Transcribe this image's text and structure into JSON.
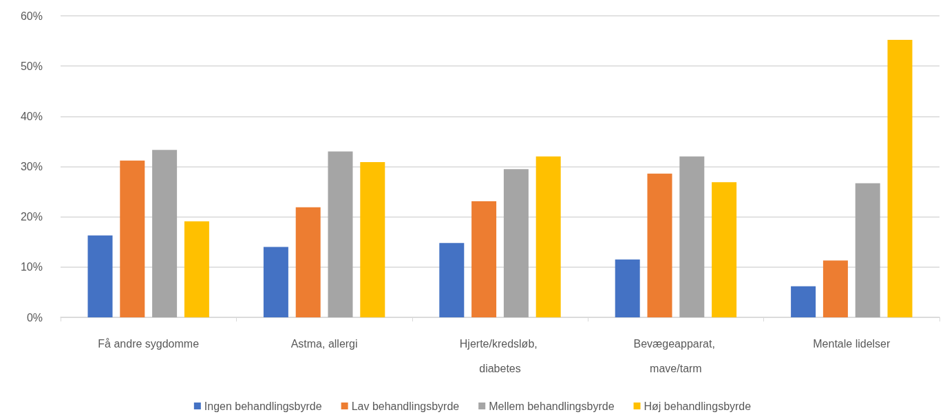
{
  "chart_data": {
    "type": "bar",
    "categories": [
      "Få andre sygdomme",
      "Astma, allergi",
      "Hjerte/kredsløb, diabetes",
      "Bevægeapparat, mave/tarm",
      "Mentale lidelser"
    ],
    "series": [
      {
        "name": "Ingen behandlingsbyrde",
        "color": "#4472c4",
        "values": [
          16.3,
          14.0,
          14.8,
          11.5,
          6.2
        ]
      },
      {
        "name": "Lav behandlingsbyrde",
        "color": "#ed7d31",
        "values": [
          31.2,
          21.9,
          23.1,
          28.6,
          11.3
        ]
      },
      {
        "name": "Mellem behandlingsbyrde",
        "color": "#a5a5a5",
        "values": [
          33.3,
          33.0,
          29.5,
          32.0,
          26.7
        ]
      },
      {
        "name": "Høj behandlingsbyrde",
        "color": "#ffc000",
        "values": [
          19.1,
          30.9,
          32.0,
          26.9,
          55.2
        ]
      }
    ],
    "ylim": [
      0,
      60
    ],
    "yticks": [
      {
        "value": 0,
        "label": "0%"
      },
      {
        "value": 10,
        "label": "10%"
      },
      {
        "value": 20,
        "label": "20%"
      },
      {
        "value": 30,
        "label": "30%"
      },
      {
        "value": 40,
        "label": "40%"
      },
      {
        "value": 50,
        "label": "50%"
      },
      {
        "value": 60,
        "label": "60%"
      }
    ],
    "grid": "y",
    "legend": "bottom"
  }
}
